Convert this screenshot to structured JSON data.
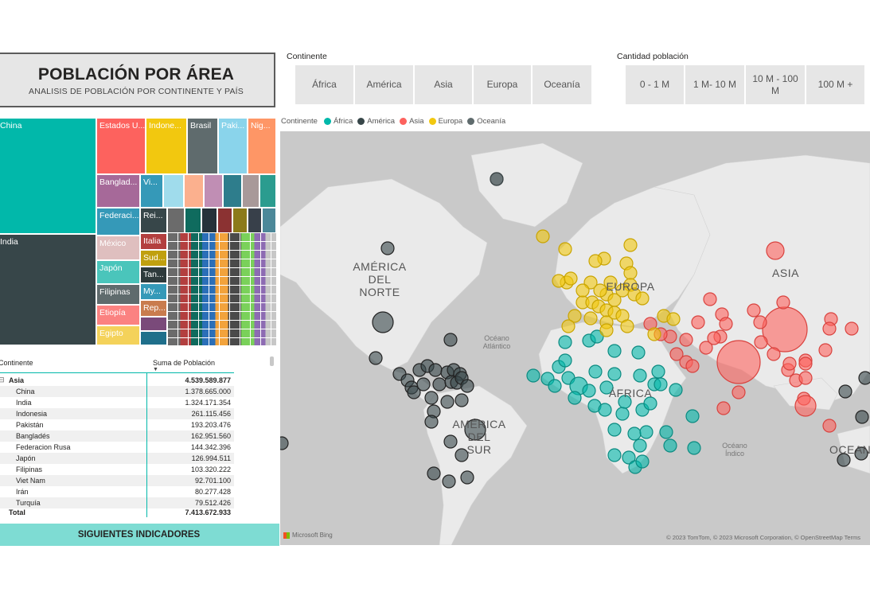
{
  "header": {
    "title": "POBLACIÓN POR ÁREA",
    "subtitle": "ANALISIS DE POBLACIÓN POR CONTINENTE Y PAÍS"
  },
  "continent_slicer": {
    "label": "Continente",
    "options": [
      "África",
      "América",
      "Asia",
      "Europa",
      "Oceanía"
    ]
  },
  "population_slicer": {
    "label": "Cantidad población",
    "options": [
      "0 - 1 M",
      "1 M- 10 M",
      "10 M - 100 M",
      "100 M +"
    ]
  },
  "treemap": {
    "tiles": [
      {
        "label": "China",
        "color": "#01b8aa"
      },
      {
        "label": "India",
        "color": "#374649"
      },
      {
        "label": "Estados U...",
        "color": "#fd625e"
      },
      {
        "label": "Indone...",
        "color": "#f2c80f"
      },
      {
        "label": "Brasil",
        "color": "#5f6b6d"
      },
      {
        "label": "Paki...",
        "color": "#8ad4eb"
      },
      {
        "label": "Nig...",
        "color": "#fe9666"
      },
      {
        "label": "Banglad...",
        "color": "#a66999"
      },
      {
        "label": "Vi...",
        "color": "#3599b8"
      },
      {
        "label": "Federaci...",
        "color": "#3599b8"
      },
      {
        "label": "Rei...",
        "color": "#374649"
      },
      {
        "label": "México",
        "color": "#dfbfbf"
      },
      {
        "label": "Italia",
        "color": "#b33f3f"
      },
      {
        "label": "Japón",
        "color": "#4ac5bb"
      },
      {
        "label": "Sud...",
        "color": "#c0a00f"
      },
      {
        "label": "Tan...",
        "color": "#2e3a3c"
      },
      {
        "label": "Filipinas",
        "color": "#5f6b6d"
      },
      {
        "label": "My...",
        "color": "#3599b8"
      },
      {
        "label": "Etiopía",
        "color": "#fb8281"
      },
      {
        "label": "Rep...",
        "color": "#c97c4e"
      },
      {
        "label": "Egipto",
        "color": "#f4d25a"
      }
    ]
  },
  "table": {
    "col_continent": "Continente",
    "col_sum": "Suma de Población",
    "group": {
      "name": "Asia",
      "value": "4.539.589.877"
    },
    "rows": [
      {
        "name": "China",
        "value": "1.378.665.000"
      },
      {
        "name": "India",
        "value": "1.324.171.354"
      },
      {
        "name": "Indonesia",
        "value": "261.115.456"
      },
      {
        "name": "Pakistán",
        "value": "193.203.476"
      },
      {
        "name": "Bangladés",
        "value": "162.951.560"
      },
      {
        "name": "Federacion Rusa",
        "value": "144.342.396"
      },
      {
        "name": "Japón",
        "value": "126.994.511"
      },
      {
        "name": "Filipinas",
        "value": "103.320.222"
      },
      {
        "name": "Viet Nam",
        "value": "92.701.100"
      },
      {
        "name": "Irán",
        "value": "80.277.428"
      },
      {
        "name": "Turquía",
        "value": "79.512.426"
      }
    ],
    "total": {
      "name": "Total",
      "value": "7.413.672.933"
    }
  },
  "next_button": "SIGUIENTES INDICADORES",
  "map": {
    "legend_title": "Continente",
    "legend": [
      {
        "name": "África",
        "color": "#01b8aa"
      },
      {
        "name": "América",
        "color": "#374649"
      },
      {
        "name": "Asia",
        "color": "#fd625e"
      },
      {
        "name": "Europa",
        "color": "#f2c80f"
      },
      {
        "name": "Oceanía",
        "color": "#5f6b6d"
      }
    ],
    "labels": {
      "north_america": "AMÉRICA\nDEL\nNORTE",
      "south_america": "AMÉRICA\nDEL\nSUR",
      "europe": "EUROPA",
      "asia": "ASIA",
      "africa": "ÁFRICA",
      "oceania": "OCEANÍA",
      "atlantic": "Océano\nAtlántico",
      "indian": "Océano\nÍndico"
    },
    "bing": "Microsoft Bing",
    "copyright": "© 2023 TomTom, © 2023 Microsoft Corporation, © OpenStreetMap  Terms"
  }
}
